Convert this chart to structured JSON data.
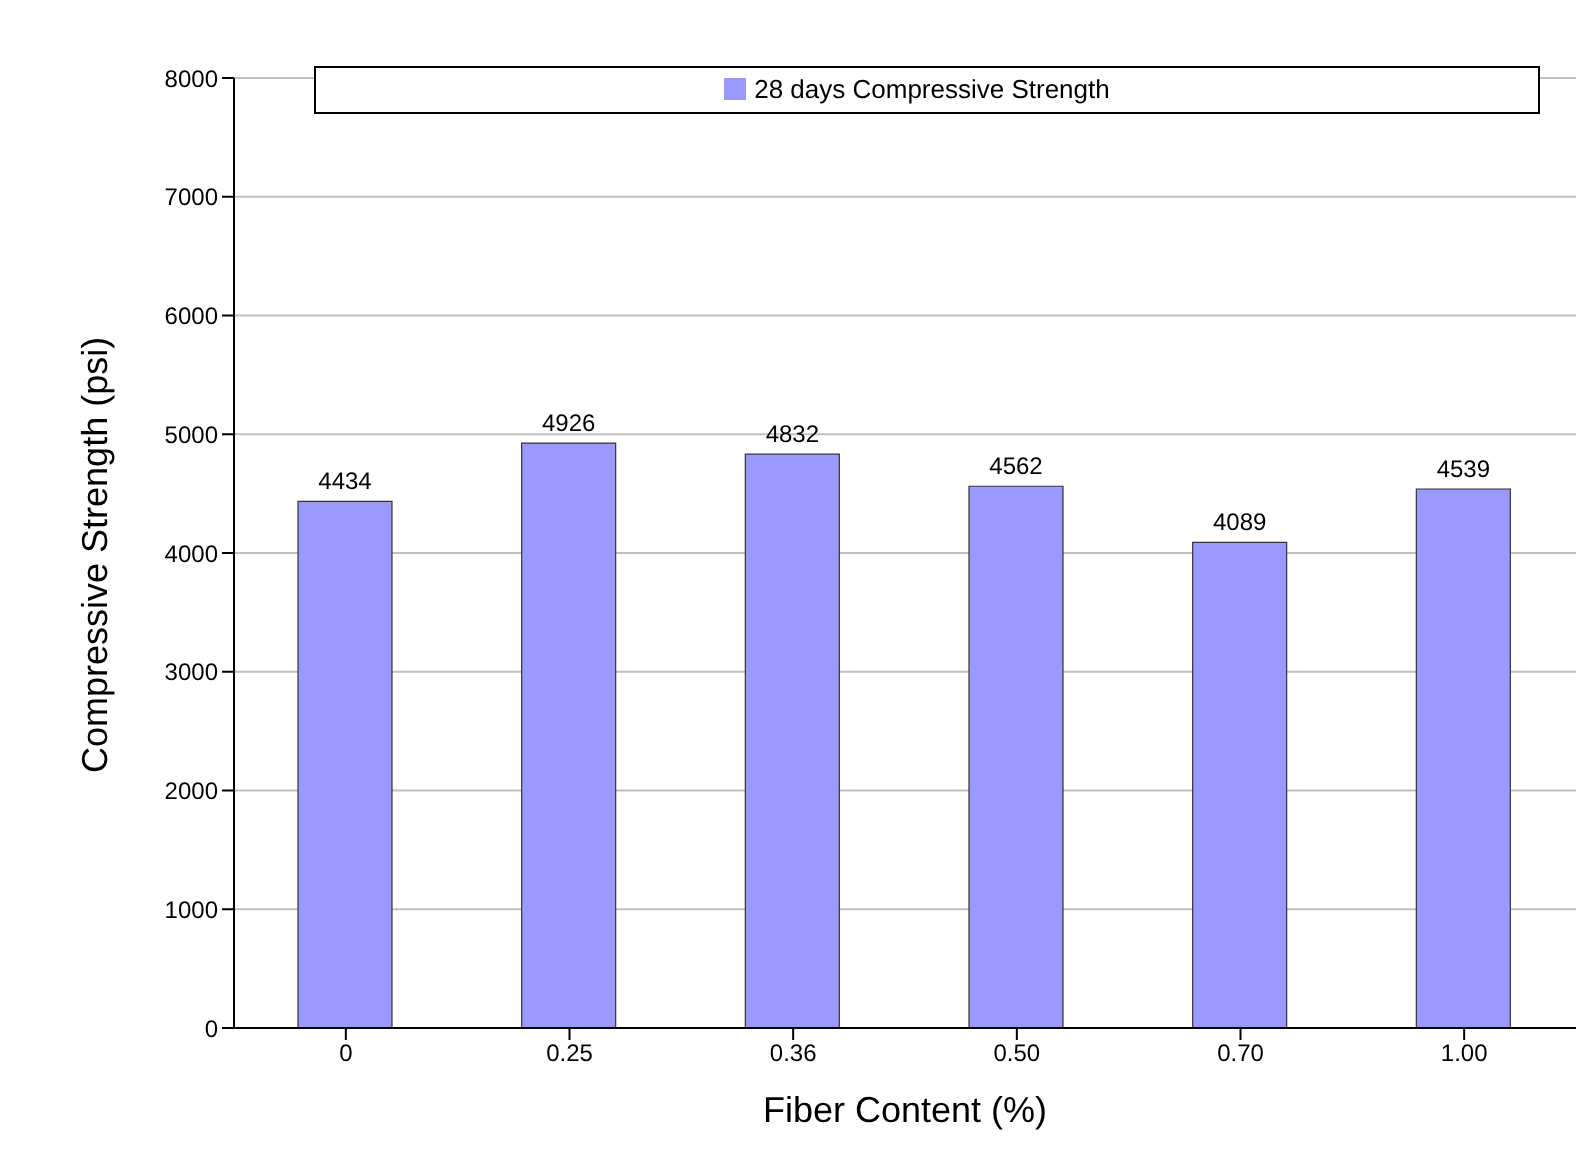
{
  "chart_data": {
    "type": "bar",
    "xlabel": "Fiber Content (%)",
    "ylabel": "Compressive Strength (psi)",
    "categories": [
      "0",
      "0.25",
      "0.36",
      "0.50",
      "0.70",
      "1.00"
    ],
    "series": [
      {
        "name": "28 days Compressive Strength",
        "color": "#9999ff",
        "values": [
          4434,
          4926,
          4832,
          4562,
          4089,
          4539
        ]
      }
    ],
    "ylim": [
      0,
      8000
    ],
    "yticks": [
      0,
      1000,
      2000,
      3000,
      4000,
      5000,
      6000,
      7000,
      8000
    ],
    "grid": "y",
    "legend": "top",
    "data_labels": true
  }
}
